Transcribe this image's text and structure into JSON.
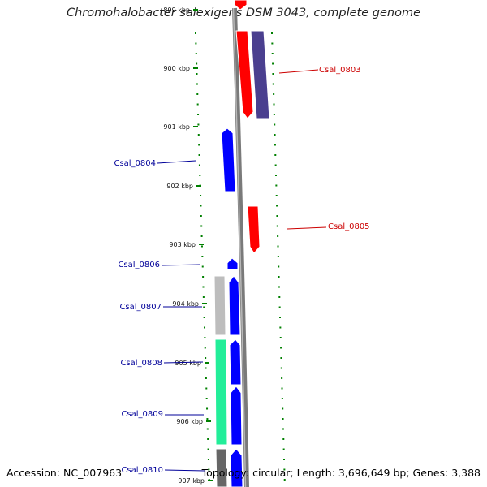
{
  "title": "Chromohalobacter salexigens DSM 3043, complete genome",
  "footer": {
    "accession": "Accession: NC_007963",
    "summary": "Topology: circular; Length: 3,696,649 bp; Genes: 3,388"
  },
  "ticks": [
    {
      "kbp": 899,
      "label": "899 kbp"
    },
    {
      "kbp": 900,
      "label": "900 kbp"
    },
    {
      "kbp": 901,
      "label": "901 kbp"
    },
    {
      "kbp": 902,
      "label": "902 kbp"
    },
    {
      "kbp": 903,
      "label": "903 kbp"
    },
    {
      "kbp": 904,
      "label": "904 kbp"
    },
    {
      "kbp": 905,
      "label": "905 kbp"
    },
    {
      "kbp": 906,
      "label": "906 kbp"
    },
    {
      "kbp": 907,
      "label": "907 kbp"
    }
  ],
  "genes": [
    {
      "id": "Csal_0803",
      "label": "Csal_0803",
      "strand": "forward",
      "color": "#ff0000",
      "label_color": "#cc0000"
    },
    {
      "id": "Csal_0804",
      "label": "Csal_0804",
      "strand": "reverse",
      "color": "#0000ff",
      "label_color": "#000099"
    },
    {
      "id": "Csal_0805",
      "label": "Csal_0805",
      "strand": "forward",
      "color": "#ff0000",
      "label_color": "#cc0000"
    },
    {
      "id": "Csal_0806",
      "label": "Csal_0806",
      "strand": "reverse",
      "color": "#0000ff",
      "label_color": "#000099"
    },
    {
      "id": "Csal_0807",
      "label": "Csal_0807",
      "strand": "reverse",
      "color": "#0000ff",
      "label_color": "#000099"
    },
    {
      "id": "Csal_0808",
      "label": "Csal_0808",
      "strand": "reverse",
      "color": "#0000ff",
      "label_color": "#000099"
    },
    {
      "id": "Csal_0809",
      "label": "Csal_0809",
      "strand": "reverse",
      "color": "#0000ff",
      "label_color": "#000099"
    },
    {
      "id": "Csal_0810",
      "label": "Csal_0810",
      "strand": "reverse",
      "color": "#0000ff",
      "label_color": "#000099"
    }
  ],
  "colors": {
    "backbone": "#7a7a7a",
    "gc_skew_tick": "#008000",
    "cog_purple": "#4a3f8f",
    "cog_gray": "#bdbdbd",
    "cog_green": "#22ee99",
    "cog_dark": "#666666"
  }
}
